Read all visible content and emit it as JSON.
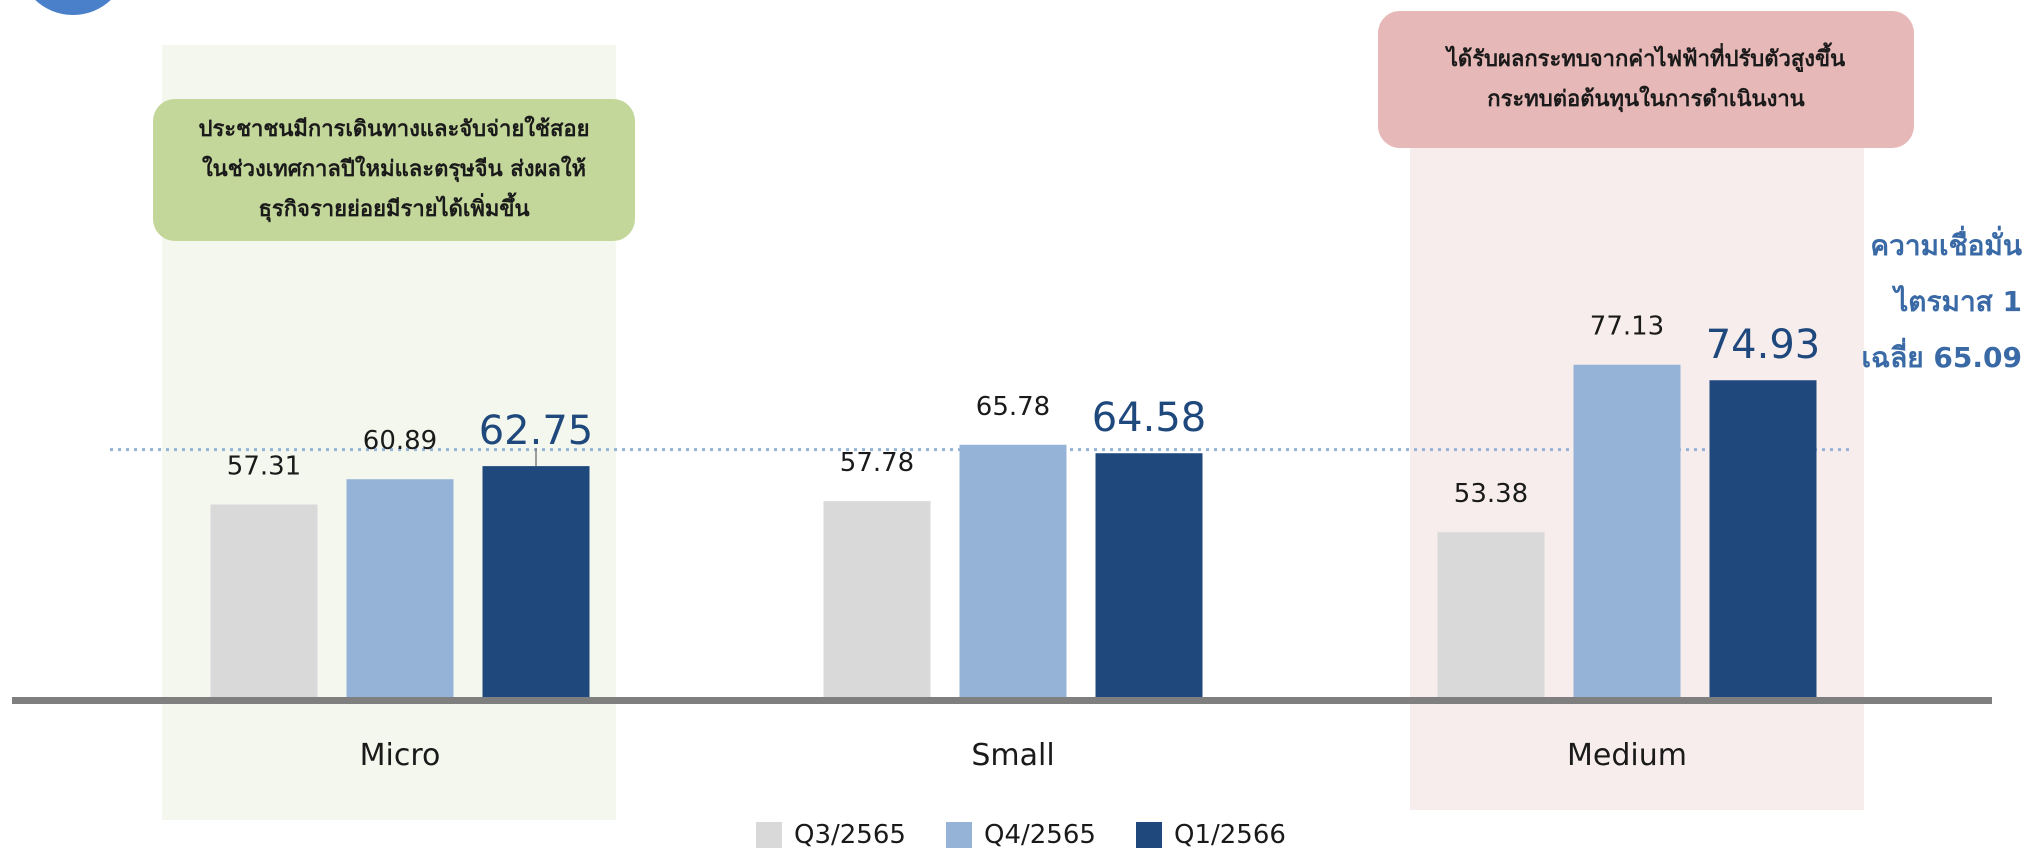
{
  "chart_data": {
    "type": "bar",
    "categories": [
      "Micro",
      "Small",
      "Medium"
    ],
    "series": [
      {
        "name": "Q3/2565",
        "color": "#d9d9d9",
        "values": [
          57.31,
          57.78,
          53.38
        ]
      },
      {
        "name": "Q4/2565",
        "color": "#95b3d7",
        "values": [
          60.89,
          65.78,
          77.13
        ]
      },
      {
        "name": "Q1/2566",
        "color": "#1f497d",
        "values": [
          62.75,
          64.58,
          74.93
        ]
      }
    ],
    "reference_line": {
      "value": 65.09,
      "label_lines": [
        "ความเชื่อมั่น",
        "ไตรมาส 1",
        "เฉลี่ย 65.09"
      ]
    },
    "grid": false,
    "legend_position": "bottom",
    "highlight_colors": {
      "micro": "#ebf1de",
      "medium": "#f2dcdb"
    }
  },
  "callouts": {
    "micro": {
      "lines": [
        "ประชาชนมีการเดินทางและจับจ่ายใช้สอย",
        "ในช่วงเทศกาลปีใหม่และตรุษจีน ส่งผลให้",
        "ธุรกิจรายย่อยมีรายได้เพิ่มขึ้น"
      ]
    },
    "medium": {
      "lines": [
        "ได้รับผลกระทบจากค่าไฟฟ้าที่ปรับตัวสูงขึ้น",
        "กระทบต่อต้นทุนในการดำเนินงาน"
      ]
    }
  }
}
